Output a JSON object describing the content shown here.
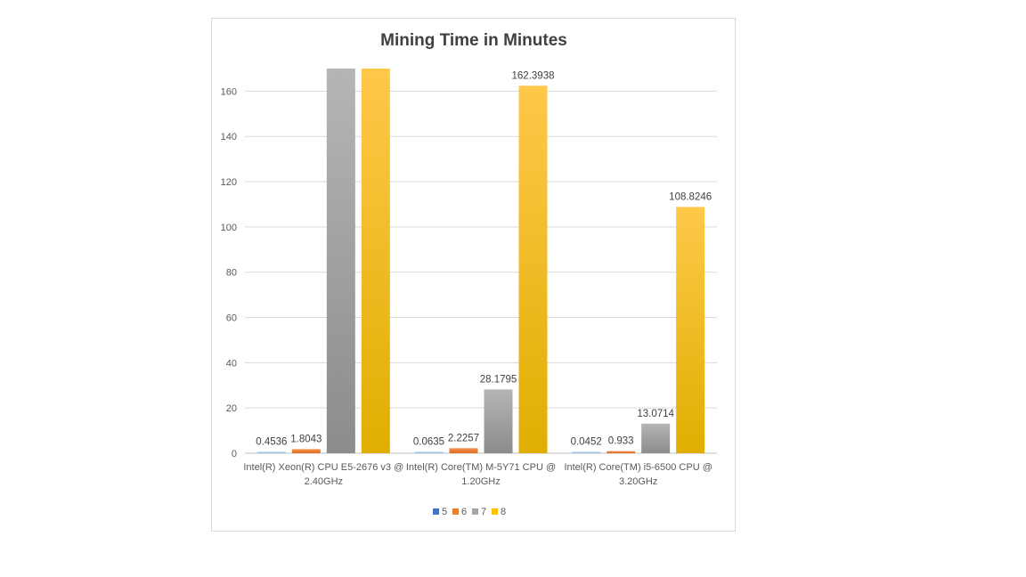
{
  "chart_data": {
    "type": "bar",
    "title": "Mining Time in Minutes",
    "categories": [
      [
        "Intel(R) Xeon(R) CPU E5-2676 v3 @",
        "2.40GHz"
      ],
      [
        "Intel(R) Core(TM) M-5Y71 CPU @",
        "1.20GHz"
      ],
      [
        "Intel(R) Core(TM) i5-6500 CPU @",
        "3.20GHz"
      ]
    ],
    "series": [
      {
        "name": "5",
        "color": "#4472c4",
        "values": [
          0.4536,
          0.0635,
          0.0452
        ],
        "labels": [
          "0.4536",
          "0.0635",
          "0.0452"
        ]
      },
      {
        "name": "6",
        "color": "#ed7d31",
        "values": [
          1.8043,
          2.2257,
          0.933
        ],
        "labels": [
          "1.8043",
          "2.2257",
          "0.933"
        ]
      },
      {
        "name": "7",
        "color": "#a5a5a5",
        "values": [
          170,
          28.1795,
          13.0714
        ],
        "labels": [
          "",
          "28.1795",
          "13.0714"
        ]
      },
      {
        "name": "8",
        "color": "#ffc000",
        "values": [
          170,
          162.3938,
          108.8246
        ],
        "labels": [
          "",
          "162.3938",
          "108.8246"
        ]
      }
    ],
    "ylim": [
      0,
      170
    ],
    "yticks": [
      0,
      20,
      40,
      60,
      80,
      100,
      120,
      140,
      160
    ],
    "grid": true,
    "legend": "bottom",
    "xlabel": "",
    "ylabel": ""
  }
}
